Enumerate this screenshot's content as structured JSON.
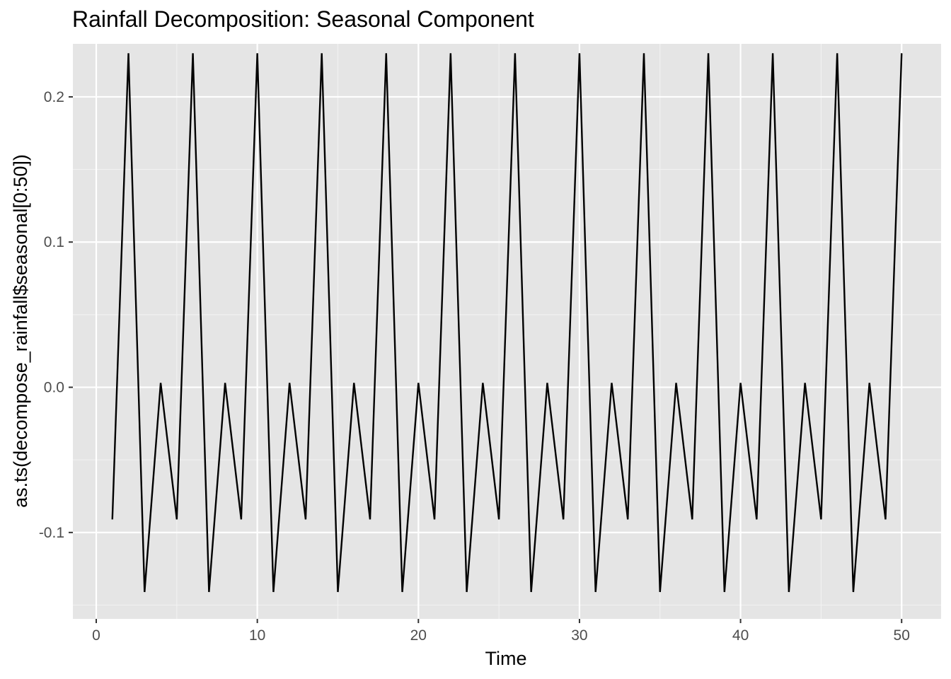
{
  "chart_data": {
    "type": "line",
    "title": "Rainfall Decomposition: Seasonal Component",
    "xlabel": "Time",
    "ylabel": "as.ts(decompose_rainfall$seasonal[0:50])",
    "xlim": [
      -1.45,
      52.45
    ],
    "ylim": [
      -0.1595,
      0.2365
    ],
    "x_ticks": [
      0,
      10,
      20,
      30,
      40,
      50
    ],
    "x_tick_labels": [
      "0",
      "10",
      "20",
      "30",
      "40",
      "50"
    ],
    "y_ticks": [
      -0.1,
      0.0,
      0.1,
      0.2
    ],
    "y_tick_labels": [
      "-0.1",
      "0.0",
      "0.1",
      "0.2"
    ],
    "grid": true,
    "legend": "none",
    "colors": {
      "panel_background": "#e5e5e5",
      "grid_major": "#ffffff",
      "grid_minor": "#f2f2f2",
      "line": "#000000",
      "tick_text": "#4d4d4d",
      "tick_mark": "#333333"
    },
    "series": [
      {
        "x": [
          1,
          2,
          3,
          4,
          5,
          6,
          7,
          8,
          9,
          10,
          11,
          12,
          13,
          14,
          15,
          16,
          17,
          18,
          19,
          20,
          21,
          22,
          23,
          24,
          25,
          26,
          27,
          28,
          29,
          30,
          31,
          32,
          33,
          34,
          35,
          36,
          37,
          38,
          39,
          40,
          41,
          42,
          43,
          44,
          45,
          46,
          47,
          48,
          49,
          50
        ],
        "values": [
          -0.091,
          0.23,
          -0.141,
          0.003,
          -0.091,
          0.23,
          -0.141,
          0.003,
          -0.091,
          0.23,
          -0.141,
          0.003,
          -0.091,
          0.23,
          -0.141,
          0.003,
          -0.091,
          0.23,
          -0.141,
          0.003,
          -0.091,
          0.23,
          -0.141,
          0.003,
          -0.091,
          0.23,
          -0.141,
          0.003,
          -0.091,
          0.23,
          -0.141,
          0.003,
          -0.091,
          0.23,
          -0.141,
          0.003,
          -0.091,
          0.23,
          -0.141,
          0.003,
          -0.091,
          0.23,
          -0.141,
          0.003,
          -0.091,
          0.23,
          -0.141,
          0.003,
          -0.091,
          0.23
        ]
      }
    ]
  }
}
